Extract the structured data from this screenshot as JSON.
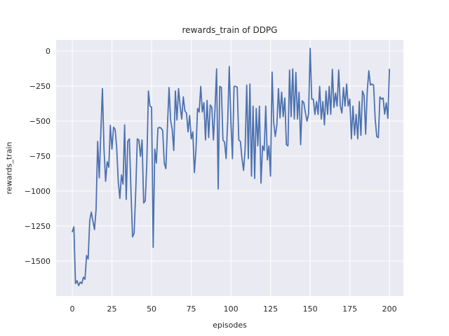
{
  "figure": {
    "title": "rewards_train of DDPG",
    "xlabel": "episodes",
    "ylabel": "rewards_train"
  },
  "chart_data": {
    "type": "line",
    "title": "rewards_train of DDPG",
    "xlabel": "episodes",
    "ylabel": "rewards_train",
    "x_start": 0,
    "x_step": 1,
    "xlim": [
      -10.2,
      208.8
    ],
    "ylim": [
      -1750,
      80
    ],
    "xticks": [
      0,
      25,
      50,
      75,
      100,
      125,
      150,
      175,
      200
    ],
    "yticks": [
      0,
      -250,
      -500,
      -750,
      -1000,
      -1250,
      -1500
    ],
    "grid": true,
    "legend": false,
    "style": {
      "axes_bg": "#EAEAF2",
      "grid_color": "#FFFFFF",
      "line_color": "#4C72B0",
      "text_color": "#262626"
    },
    "series": [
      {
        "name": "rewards_train",
        "values": [
          -1290,
          -1255,
          -1660,
          -1640,
          -1675,
          -1650,
          -1660,
          -1615,
          -1630,
          -1460,
          -1485,
          -1210,
          -1150,
          -1215,
          -1275,
          -1130,
          -645,
          -905,
          -577,
          -268,
          -700,
          -930,
          -790,
          -830,
          -530,
          -700,
          -543,
          -560,
          -690,
          -935,
          -1052,
          -885,
          -950,
          -527,
          -1060,
          -643,
          -627,
          -1000,
          -1327,
          -1300,
          -1000,
          -627,
          -635,
          -752,
          -635,
          -1085,
          -1070,
          -800,
          -285,
          -393,
          -400,
          -1402,
          -700,
          -800,
          -550,
          -545,
          -550,
          -568,
          -800,
          -840,
          -540,
          -260,
          -493,
          -560,
          -710,
          -285,
          -493,
          -268,
          -393,
          -485,
          -327,
          -427,
          -443,
          -577,
          -460,
          -627,
          -577,
          -868,
          -700,
          -410,
          -435,
          -252,
          -435,
          -368,
          -635,
          -352,
          -618,
          -385,
          -402,
          -635,
          -410,
          -127,
          -985,
          -252,
          -260,
          -635,
          -650,
          -768,
          -500,
          -110,
          -500,
          -768,
          -252,
          -252,
          -258,
          -635,
          -645,
          -768,
          -852,
          -700,
          -243,
          -768,
          -235,
          -893,
          -393,
          -910,
          -410,
          -677,
          -393,
          -943,
          -677,
          -710,
          -393,
          -777,
          -677,
          -893,
          -150,
          -510,
          -610,
          -527,
          -268,
          -477,
          -293,
          -468,
          -335,
          -668,
          -677,
          -135,
          -468,
          -127,
          -485,
          -152,
          -485,
          -293,
          -668,
          -355,
          -368,
          -440,
          -500,
          -450,
          20,
          -343,
          -343,
          -452,
          -360,
          -452,
          -252,
          -485,
          -360,
          -527,
          -285,
          -452,
          -252,
          -452,
          -130,
          -402,
          -300,
          -393,
          -135,
          -393,
          -443,
          -260,
          -393,
          -235,
          -393,
          -343,
          -627,
          -393,
          -600,
          -452,
          -627,
          -360,
          -602,
          -285,
          -318,
          -593,
          -285,
          -140,
          -243,
          -235,
          -243,
          -485,
          -610,
          -618,
          -327,
          -343,
          -335,
          -450,
          -370,
          -480,
          -130
        ]
      }
    ]
  }
}
